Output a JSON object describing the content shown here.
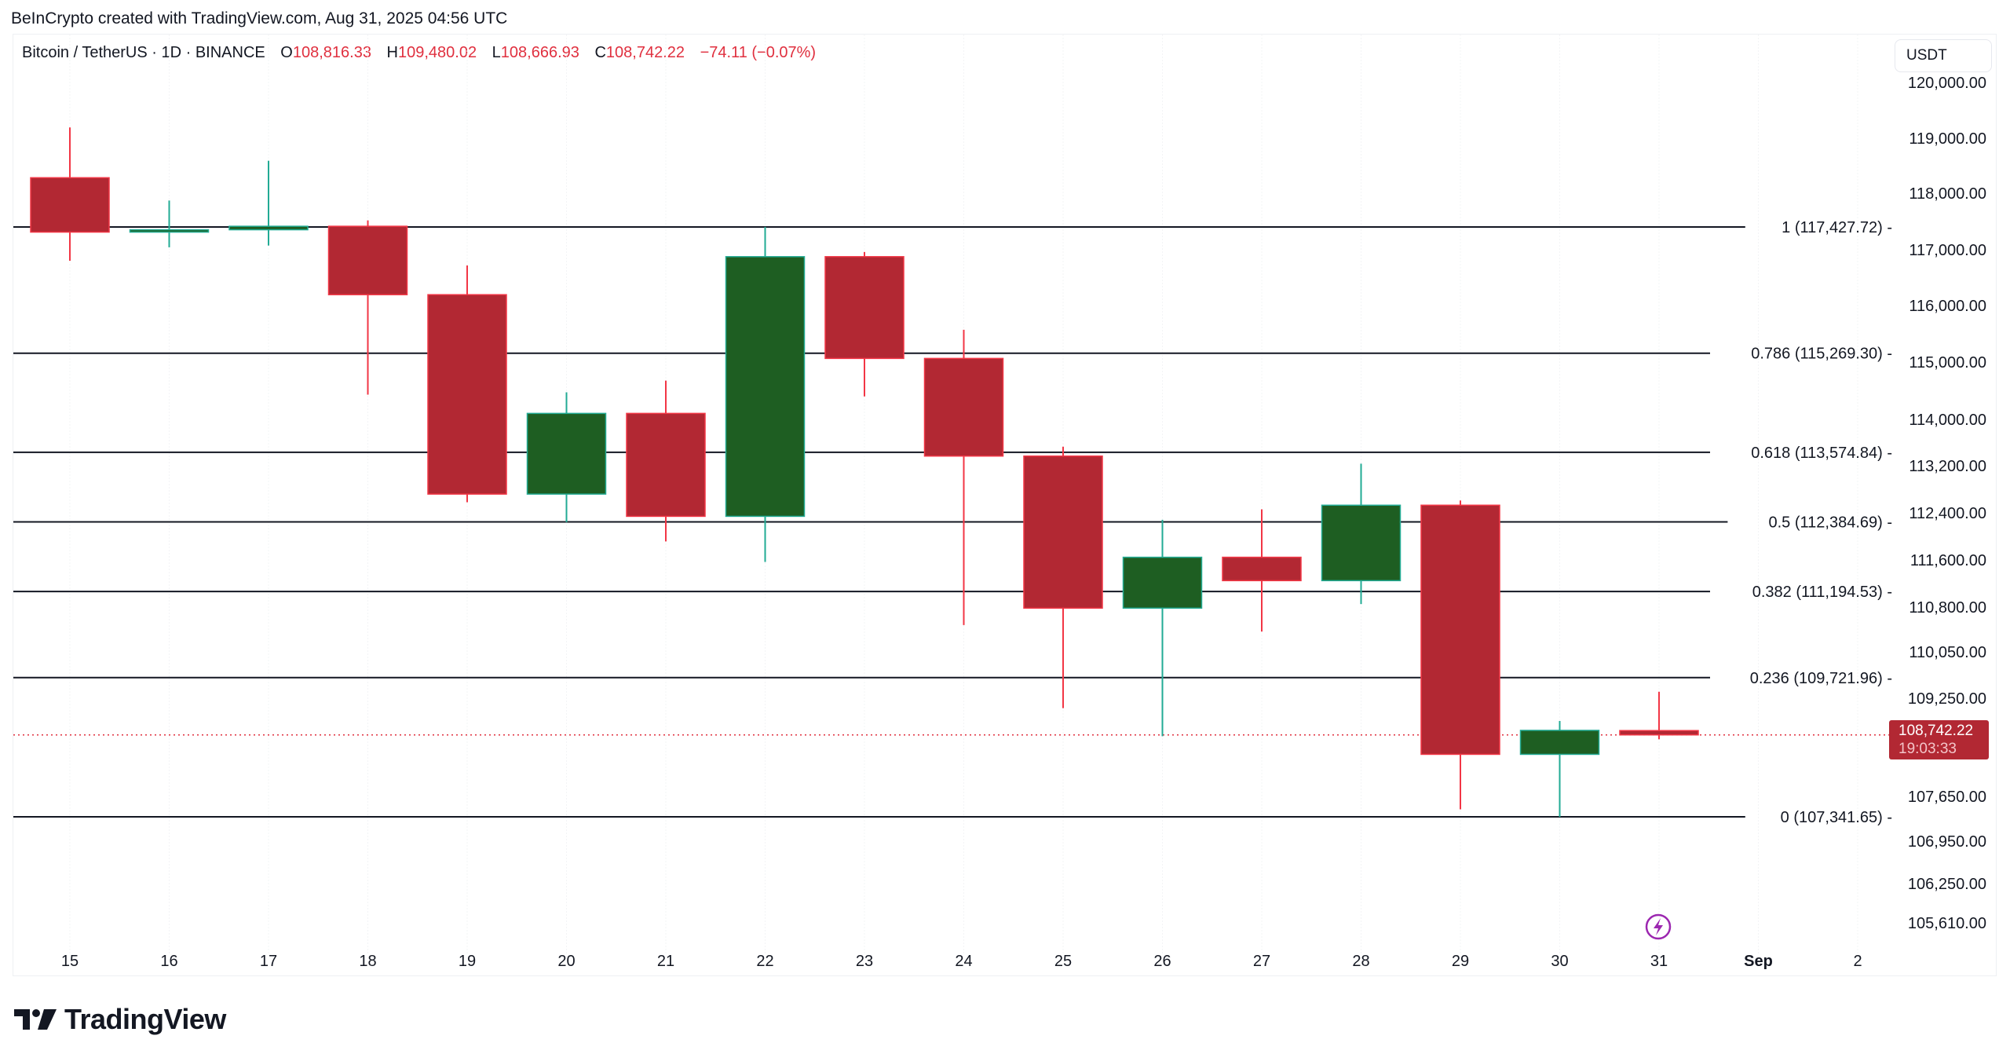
{
  "credit": "BeInCrypto created with TradingView.com, Aug 31, 2025 04:56 UTC",
  "legend": {
    "symbol": "Bitcoin / TetherUS · 1D · BINANCE",
    "open_label": "O",
    "open": "108,816.33",
    "high_label": "H",
    "high": "109,480.02",
    "low_label": "L",
    "low": "108,666.93",
    "close_label": "C",
    "close": "108,742.22",
    "change": "−74.11 (−0.07%)"
  },
  "currency": "USDT",
  "price_tag": {
    "price": "108,742.22",
    "countdown": "19:03:33"
  },
  "logo_text": "TradingView",
  "colors": {
    "up": "#1e5e22",
    "up_border": "#22ab94",
    "down": "#b22833",
    "down_border": "#f23645",
    "fib_line": "#131722",
    "last_price": "#e0303f",
    "event_icon": "#9c27b0"
  },
  "chart_data": {
    "type": "candlestick",
    "title": "Bitcoin / TetherUS · 1D · BINANCE",
    "xlabel": "",
    "ylabel": "USDT",
    "ylim": [
      105300,
      120300
    ],
    "x_tick_labels": [
      "15",
      "16",
      "17",
      "18",
      "19",
      "20",
      "21",
      "22",
      "23",
      "24",
      "25",
      "26",
      "27",
      "28",
      "29",
      "30",
      "31",
      "Sep",
      "2"
    ],
    "y_tick_labels": [
      "120,000.00",
      "119,000.00",
      "118,000.00",
      "117,000.00",
      "116,000.00",
      "115,000.00",
      "114,000.00",
      "113,200.00",
      "112,400.00",
      "111,600.00",
      "110,800.00",
      "110,050.00",
      "109,250.00",
      "107,650.00",
      "106,950.00",
      "106,250.00",
      "105,610.00"
    ],
    "y_tick_values": [
      120000,
      119000,
      118000,
      117000,
      116000,
      115000,
      114000,
      113200,
      112400,
      111600,
      110800,
      110050,
      109250,
      107650,
      106950,
      106250,
      105610
    ],
    "candles": [
      {
        "date": "Aug 15",
        "open": 118270,
        "high": 119130,
        "low": 116850,
        "close": 117340
      },
      {
        "date": "Aug 16",
        "open": 117340,
        "high": 117880,
        "low": 117080,
        "close": 117380
      },
      {
        "date": "Aug 17",
        "open": 117380,
        "high": 118560,
        "low": 117110,
        "close": 117440
      },
      {
        "date": "Aug 18",
        "open": 117440,
        "high": 117540,
        "low": 114560,
        "close": 116270
      },
      {
        "date": "Aug 19",
        "open": 116270,
        "high": 116770,
        "low": 112720,
        "close": 112860
      },
      {
        "date": "Aug 20",
        "open": 112860,
        "high": 114600,
        "low": 112380,
        "close": 114240
      },
      {
        "date": "Aug 21",
        "open": 114240,
        "high": 114800,
        "low": 112050,
        "close": 112480
      },
      {
        "date": "Aug 22",
        "open": 112480,
        "high": 117430,
        "low": 111700,
        "close": 116920
      },
      {
        "date": "Aug 23",
        "open": 116920,
        "high": 117000,
        "low": 114530,
        "close": 115180
      },
      {
        "date": "Aug 24",
        "open": 115180,
        "high": 115670,
        "low": 110620,
        "close": 113510
      },
      {
        "date": "Aug 25",
        "open": 113510,
        "high": 113670,
        "low": 109200,
        "close": 110910
      },
      {
        "date": "Aug 26",
        "open": 110910,
        "high": 112420,
        "low": 108720,
        "close": 111780
      },
      {
        "date": "Aug 27",
        "open": 111780,
        "high": 112600,
        "low": 110510,
        "close": 111380
      },
      {
        "date": "Aug 28",
        "open": 111380,
        "high": 113380,
        "low": 110980,
        "close": 112670
      },
      {
        "date": "Aug 29",
        "open": 112670,
        "high": 112750,
        "low": 107470,
        "close": 108410
      },
      {
        "date": "Aug 30",
        "open": 108410,
        "high": 108980,
        "low": 107340,
        "close": 108820
      },
      {
        "date": "Aug 31",
        "open": 108816.33,
        "high": 109480.02,
        "low": 108666.93,
        "close": 108742.22
      }
    ],
    "fib_levels": [
      {
        "ratio": "1",
        "price": 117427.72,
        "label": "1 (117,427.72) -"
      },
      {
        "ratio": "0.786",
        "price": 115269.3,
        "label": "0.786 (115,269.30) -"
      },
      {
        "ratio": "0.618",
        "price": 113574.84,
        "label": "0.618 (113,574.84) -"
      },
      {
        "ratio": "0.5",
        "price": 112384.69,
        "label": "0.5 (112,384.69) -"
      },
      {
        "ratio": "0.382",
        "price": 111194.53,
        "label": "0.382 (111,194.53) -"
      },
      {
        "ratio": "0.236",
        "price": 109721.96,
        "label": "0.236 (109,721.96) -"
      },
      {
        "ratio": "0",
        "price": 107341.65,
        "label": "0 (107,341.65) -"
      }
    ],
    "last_price": 108742.22,
    "grid": true,
    "legend_position": "top-left"
  }
}
